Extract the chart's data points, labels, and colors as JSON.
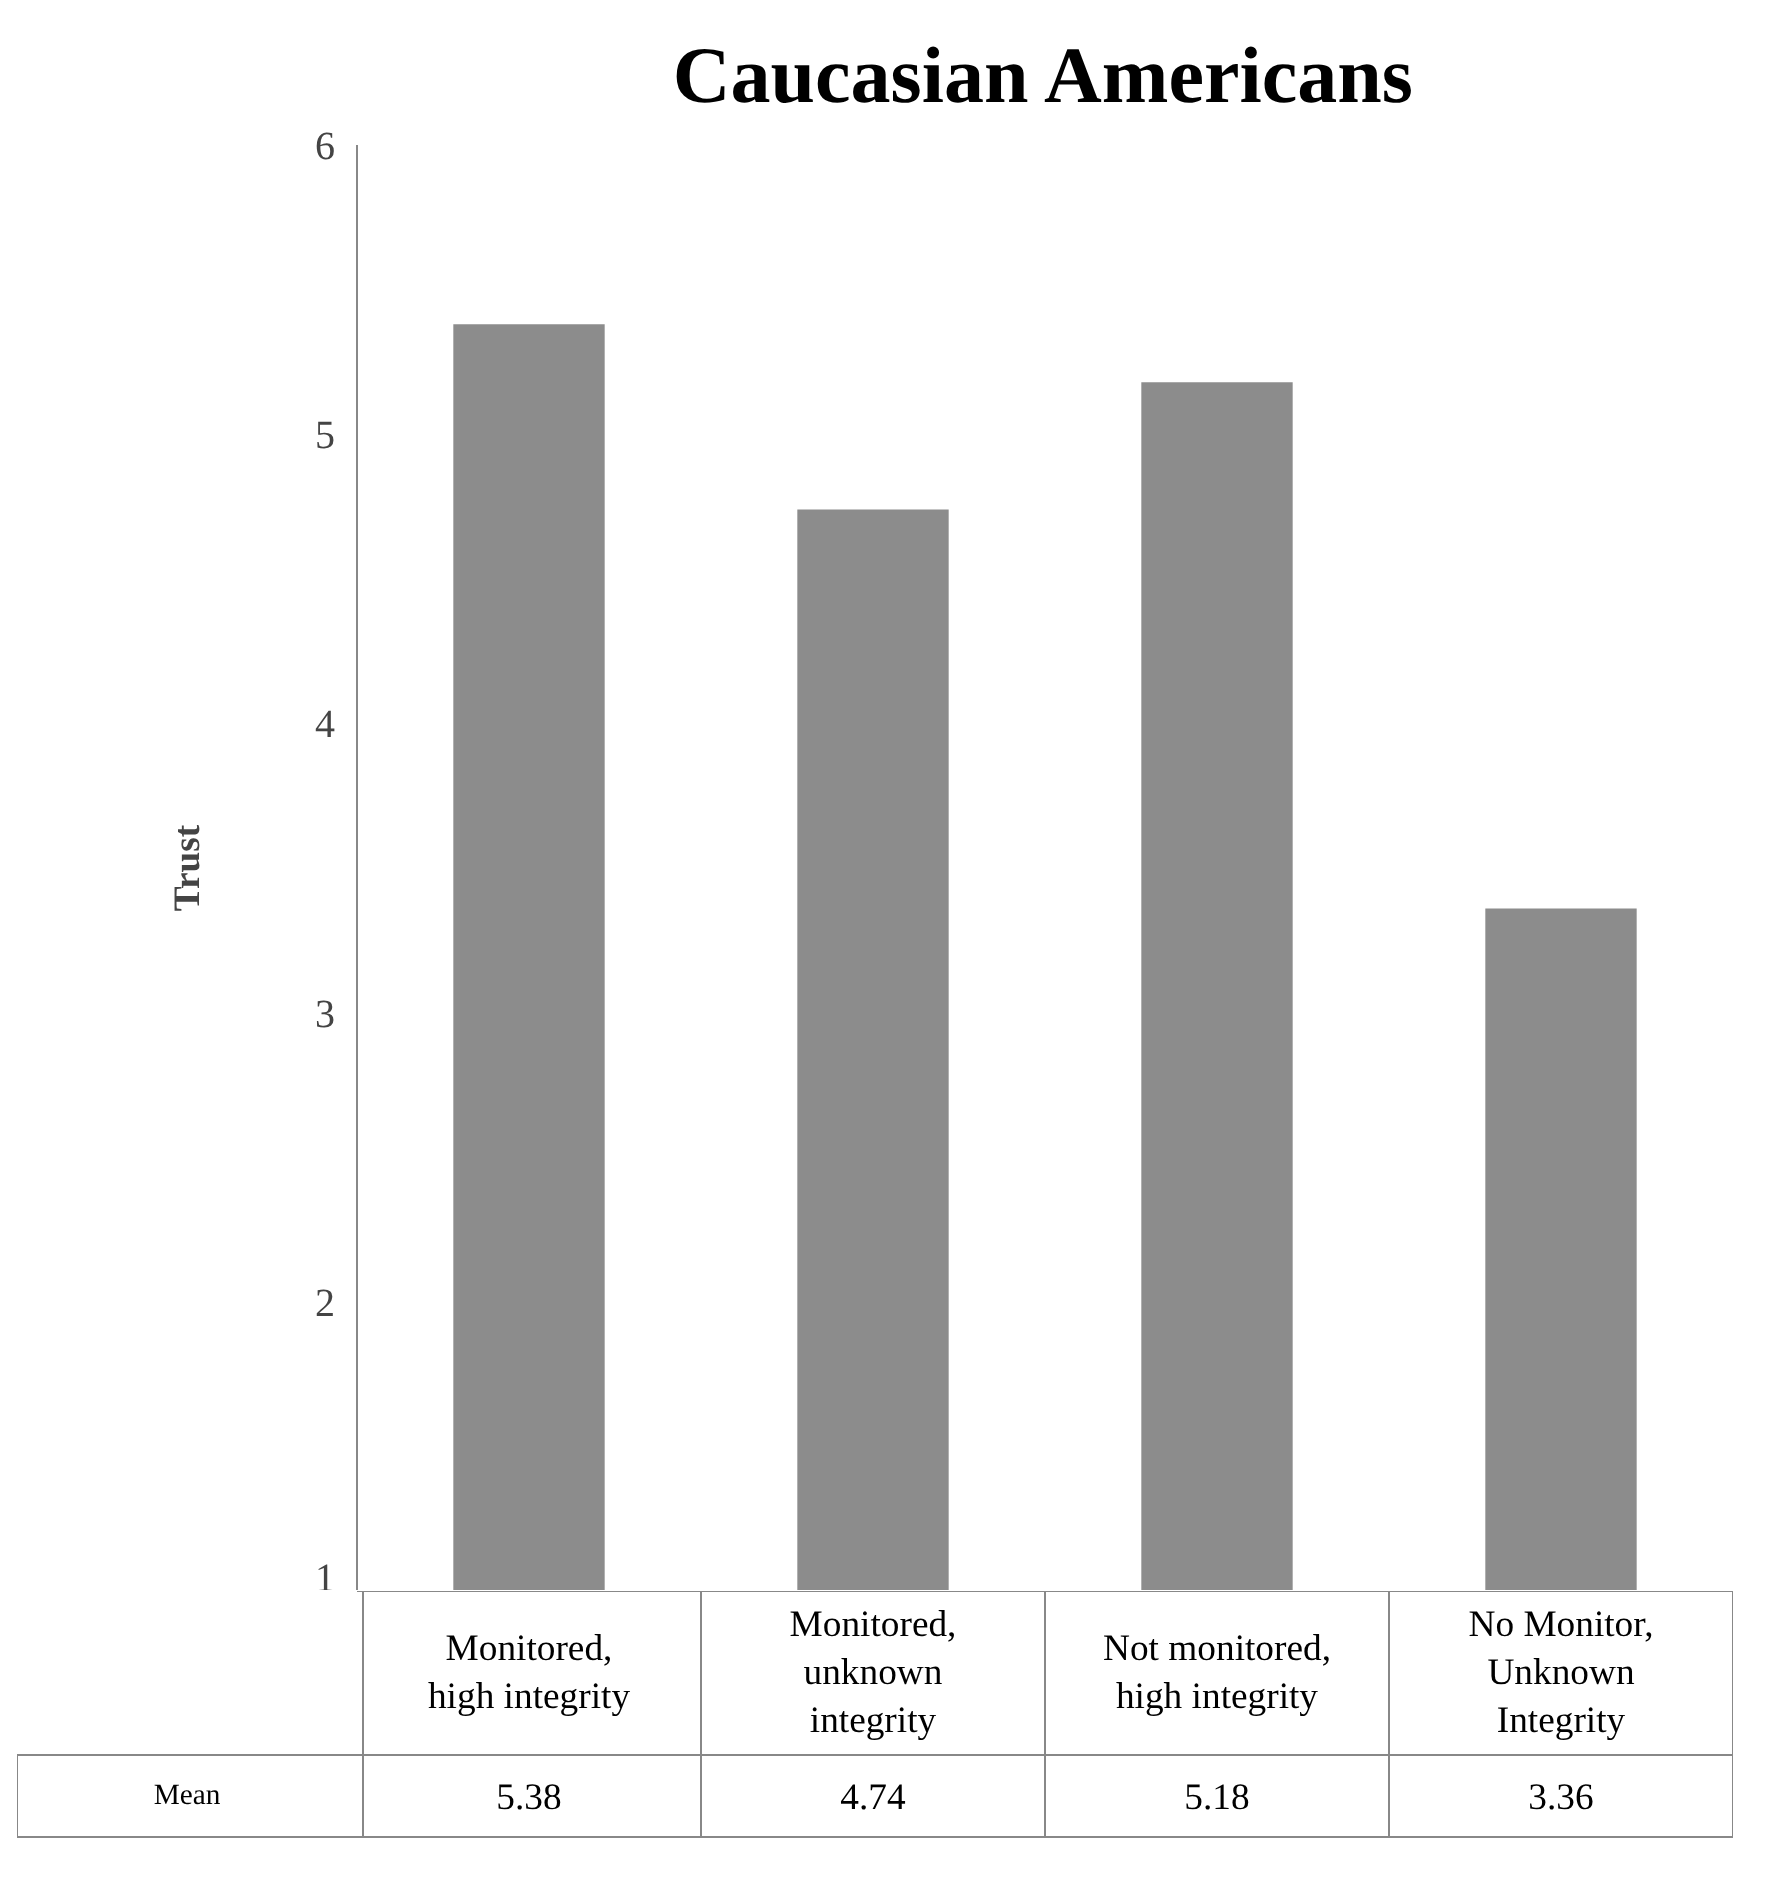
{
  "chart_data": {
    "type": "bar",
    "title": "Caucasian Americans",
    "ylabel": "Trust",
    "categories": [
      "Monitored, high integrity",
      "Monitored, unknown integrity",
      "Not monitored, high integrity",
      "No Monitor, Unknown Integrity"
    ],
    "values": [
      5.38,
      4.74,
      5.18,
      3.36
    ],
    "color": "#8c8c8c",
    "ylim": [
      1,
      6
    ],
    "yticks": [
      1,
      2,
      3,
      4,
      5,
      6
    ],
    "grid": false,
    "data_labels": true,
    "annotations": [
      "Mean"
    ]
  }
}
